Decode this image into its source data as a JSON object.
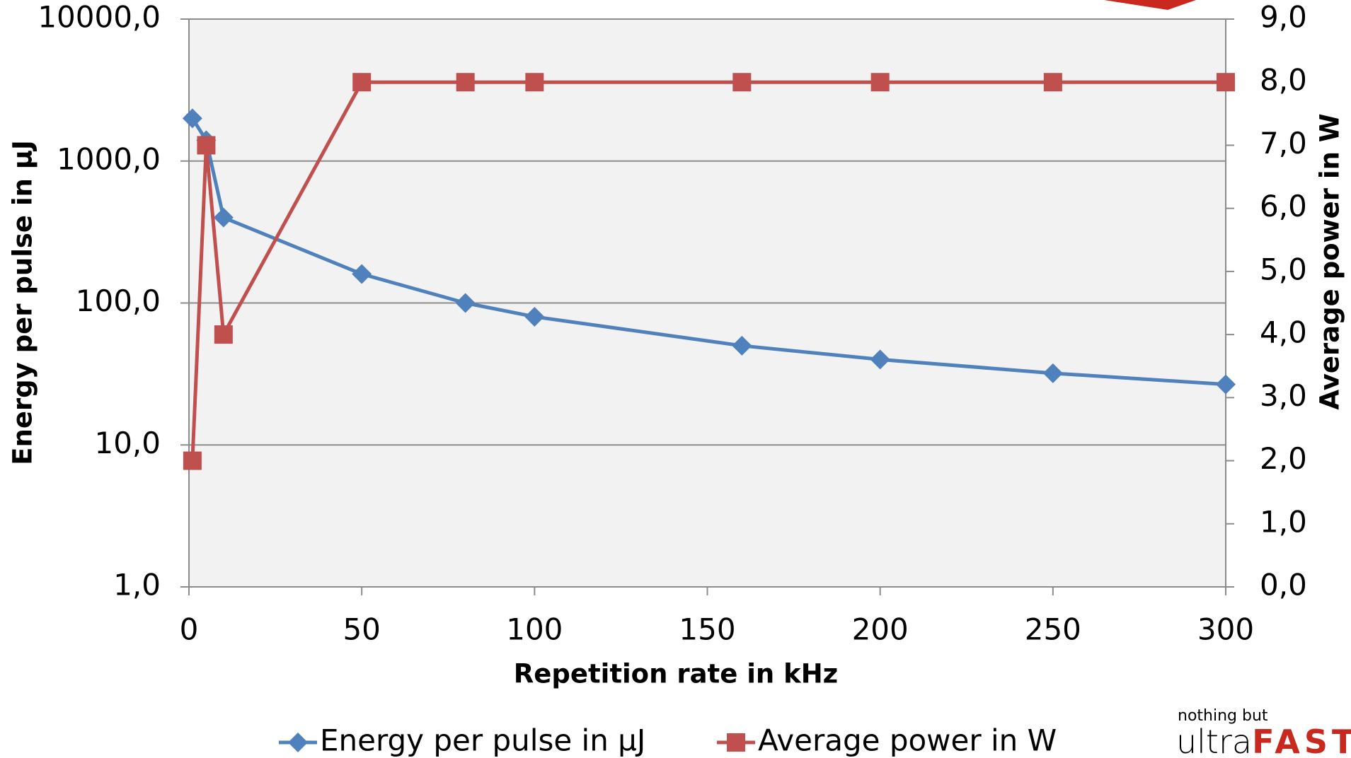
{
  "chart_data": {
    "type": "line",
    "x": [
      1,
      5,
      10,
      50,
      80,
      100,
      160,
      200,
      250,
      300
    ],
    "xlim": [
      0,
      300
    ],
    "xticks": [
      0,
      50,
      100,
      150,
      200,
      250,
      300
    ],
    "ylim": [
      1,
      10000
    ],
    "log_y": true,
    "yticks": [
      {
        "value": 1,
        "label": "1,0"
      },
      {
        "value": 10,
        "label": "10,0"
      },
      {
        "value": 100,
        "label": "100,0"
      },
      {
        "value": 1000,
        "label": "1000,0"
      },
      {
        "value": 10000,
        "label": "10000,0"
      }
    ],
    "y2lim": [
      0,
      9
    ],
    "y2ticks": [
      {
        "value": 0,
        "label": "0,0"
      },
      {
        "value": 1,
        "label": "1,0"
      },
      {
        "value": 2,
        "label": "2,0"
      },
      {
        "value": 3,
        "label": "3,0"
      },
      {
        "value": 4,
        "label": "4,0"
      },
      {
        "value": 5,
        "label": "5,0"
      },
      {
        "value": 6,
        "label": "6,0"
      },
      {
        "value": 7,
        "label": "7,0"
      },
      {
        "value": 8,
        "label": "8,0"
      },
      {
        "value": 9,
        "label": "9,0"
      }
    ],
    "xlabel": "Repetition rate in kHz",
    "ylabel": "Energy per pulse in µJ",
    "y2label": "Average power in W",
    "grid": true,
    "legend": "bottom",
    "series": [
      {
        "name": "Energy per pulse in µJ",
        "color": "#4f81bd",
        "marker": "diamond",
        "values": [
          2000,
          1400,
          400,
          160,
          100,
          80,
          50,
          40,
          32,
          26.7
        ]
      },
      {
        "name": "Average power in W",
        "color": "#c0504d",
        "marker": "square",
        "axis": "y2",
        "values": [
          2,
          7,
          4,
          8,
          8,
          8,
          8,
          8,
          8,
          8
        ]
      }
    ]
  },
  "logo": {
    "tagline": "nothing but",
    "brand": "ultra",
    "accent": "FAST"
  }
}
